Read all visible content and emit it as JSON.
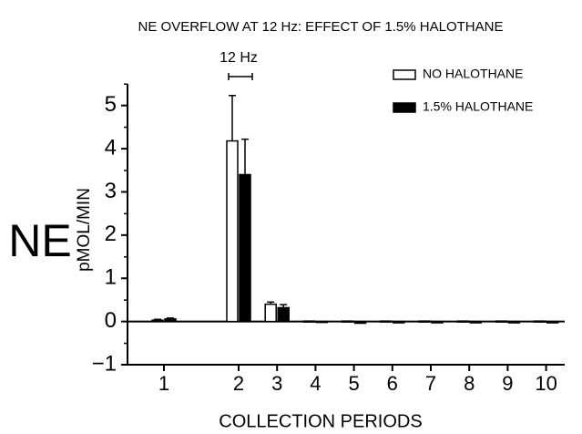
{
  "chart_data": {
    "type": "bar",
    "title": "NE OVERFLOW AT 12 Hz:  EFFECT OF 1.5% HALOTHANE",
    "annotation": "12 Hz",
    "y_title_big": "NE",
    "y_label": "pMOL/MIN",
    "x_label": "COLLECTION PERIODS",
    "categories": [
      "1",
      "2",
      "3",
      "4",
      "5",
      "6",
      "7",
      "8",
      "9",
      "10"
    ],
    "series": [
      {
        "name": "NO HALOTHANE",
        "color": "#ffffff",
        "values": [
          0.03,
          4.18,
          0.4,
          0.01,
          0.01,
          0.01,
          0.01,
          0.01,
          0.01,
          0.01
        ],
        "errors": [
          0.02,
          1.05,
          0.05,
          null,
          null,
          null,
          null,
          null,
          null,
          null
        ]
      },
      {
        "name": "1.5% HALOTHANE",
        "color": "#000000",
        "values": [
          0.06,
          3.4,
          0.32,
          0.0,
          -0.04,
          -0.03,
          -0.03,
          -0.03,
          -0.03,
          -0.03
        ],
        "errors": [
          0.02,
          0.82,
          0.07,
          null,
          null,
          null,
          null,
          null,
          null,
          null
        ]
      }
    ],
    "ylim": [
      -1,
      5.5
    ],
    "yticks": [
      {
        "value": -1,
        "label": "−1"
      },
      0,
      1,
      2,
      3,
      4,
      5
    ],
    "legend": "top-right"
  }
}
